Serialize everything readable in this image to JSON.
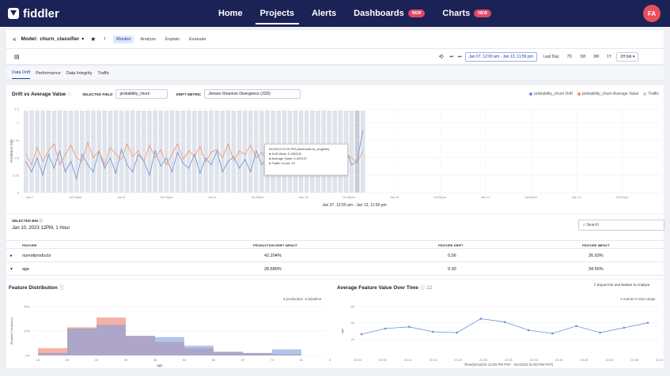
{
  "brand": "fiddler",
  "nav": {
    "home": "Home",
    "projects": "Projects",
    "alerts": "Alerts",
    "dashboards": "Dashboards",
    "charts": "Charts",
    "new_badge": "NEW",
    "avatar": "FA"
  },
  "model_header": {
    "model_label": "Model:",
    "model_name": "churn_classifier",
    "sub_tabs": [
      "Monitor",
      "Analyze",
      "Explain",
      "Evaluate"
    ]
  },
  "toolbar": {
    "date_range": "Jan 07, 12:00 am - Jan 13, 11:59 pm",
    "ranges": [
      "Last Day",
      "7D",
      "1M",
      "3M",
      "1Y"
    ],
    "bin": "1H bin"
  },
  "tabs": [
    "Data Drift",
    "Performance",
    "Data Integrity",
    "Traffic"
  ],
  "drift_panel": {
    "title": "Drift vs Average Value",
    "selected_field_label": "SELECTED FIELD",
    "selected_field": "probability_churn",
    "drift_metric_label": "DRIFT METRIC",
    "drift_metric": "Jensen-Shannon Divergence (JSD)",
    "legend": [
      "probability_churn Drift",
      "probability_churn Average Value",
      "Traffic"
    ],
    "colors": {
      "drift": "#6a8fd8",
      "avg": "#f09070",
      "traffic": "#dfe3ea"
    },
    "x_caption": "Jan 07, 12:00 am - Jan 13, 11:59 pm",
    "y_axis_label": "Prediction Drift",
    "tooltip": {
      "time": "01/10/23 12:00 PM (America/Los_Angeles)",
      "drift": "Drift Value: 0.452326",
      "avg": "Average Value: 0.429137",
      "count": "Traffic Count: 10"
    }
  },
  "chart_data": [
    {
      "type": "line",
      "title": "Drift vs Average Value",
      "ylabel": "Prediction Drift",
      "ylim": [
        0,
        1.2
      ],
      "y_ticks": [
        "1.2",
        "1",
        "0.75",
        "0.5",
        "0.25",
        "0"
      ],
      "x_ticks": [
        "Jan 7",
        "04:00pm",
        "Jan 8",
        "04:00pm",
        "Jan 9",
        "04:00pm",
        "Jan 10",
        "04:00pm",
        "Jan 11",
        "04:00pm",
        "Jan 12",
        "04:00pm",
        "Jan 13",
        "04:00pm"
      ],
      "series": [
        {
          "name": "probability_churn Drift",
          "values": [
            0.45,
            0.3,
            0.5,
            0.25,
            0.55,
            0.35,
            0.6,
            0.3,
            0.45,
            0.2,
            0.55,
            0.4,
            0.3,
            0.6,
            0.35,
            0.5,
            0.28,
            0.62,
            0.4,
            0.3,
            0.55,
            0.45,
            0.25,
            0.6,
            0.38,
            0.5,
            0.3,
            0.58,
            0.42,
            0.35,
            0.55,
            0.28,
            0.5,
            0.4,
            0.6,
            0.3,
            0.45,
            0.52,
            0.35,
            0.48,
            0.3,
            0.6,
            0.4,
            0.5,
            0.32,
            0.55,
            0.45,
            0.38,
            0.52,
            0.42,
            0.3,
            0.58,
            0.4,
            0.48,
            0.35,
            0.5,
            0.45,
            0.62,
            0.4,
            0.45,
            0.9
          ]
        },
        {
          "name": "probability_churn Average Value",
          "values": [
            0.55,
            0.4,
            0.65,
            0.45,
            0.6,
            0.7,
            0.4,
            0.55,
            0.68,
            0.5,
            0.45,
            0.72,
            0.5,
            0.6,
            0.4,
            0.65,
            0.55,
            0.48,
            0.7,
            0.52,
            0.6,
            0.45,
            0.68,
            0.5,
            0.62,
            0.4,
            0.55,
            0.7,
            0.48,
            0.6,
            0.52,
            0.66,
            0.44,
            0.58,
            0.62,
            0.5,
            0.7,
            0.46,
            0.6,
            0.55,
            0.68,
            0.5,
            0.58,
            0.45,
            0.66,
            0.52,
            0.6,
            0.48,
            0.7,
            0.54,
            0.62,
            0.5,
            0.58,
            0.46,
            0.64,
            0.52,
            0.6,
            0.55,
            0.5,
            0.43,
            0.6
          ]
        }
      ]
    },
    {
      "type": "bar",
      "title": "Feature Distribution",
      "xlabel": "age",
      "ylabel": "Relative Frequency",
      "x_ticks": [
        "18",
        "25",
        "32",
        "39",
        "46",
        "53",
        "60",
        "67",
        "74",
        "81",
        "88"
      ],
      "y_ticks": [
        "40%",
        "20%",
        "0%"
      ],
      "ylim": [
        0,
        0.4
      ],
      "series": [
        {
          "name": "production",
          "values": [
            0.02,
            0.22,
            0.25,
            0.16,
            0.15,
            0.08,
            0.03,
            0.02,
            0.05
          ]
        },
        {
          "name": "baseline",
          "values": [
            0.06,
            0.23,
            0.31,
            0.16,
            0.11,
            0.06,
            0.03,
            0.02,
            0.01
          ]
        }
      ]
    },
    {
      "type": "line",
      "title": "Average Feature Value Over Time",
      "ylabel": "age",
      "ylim": [
        0,
        60
      ],
      "y_ticks": [
        "60",
        "40",
        "20"
      ],
      "xlabel": "Time(01/10/23 12:00 PM PST - 01/10/23 01:00 PM PST)",
      "x_ticks": [
        "20:00",
        "20:05",
        "20:10",
        "20:15",
        "20:20",
        "20:25",
        "20:30",
        "20:35",
        "20:40",
        "20:45",
        "20:50",
        "20:55",
        "21:00"
      ],
      "series": [
        {
          "name": "events in time range",
          "values": [
            26,
            33,
            35,
            29,
            28,
            45,
            41,
            31,
            27,
            36,
            28,
            34,
            40
          ]
        }
      ]
    }
  ],
  "selected_bin": {
    "label": "SELECTED BIN",
    "value": "Jan 10, 2023 12PM, 1 Hour",
    "search_placeholder": "Search"
  },
  "impact_table": {
    "headers": [
      "FEATURE",
      "PRODUCTION DRIFT IMPACT",
      "FEATURE DRIFT",
      "FEATURE IMPACT"
    ],
    "rows": [
      {
        "feature": "numofproducts",
        "prod_impact": "42.204%",
        "drift": "0.56",
        "impact": "26.93%"
      },
      {
        "feature": "age",
        "prod_impact": "28.680%",
        "drift": "0.30",
        "impact": "34.55%"
      }
    ]
  },
  "feature_dist": {
    "title": "Feature Distribution",
    "legend": [
      "production",
      "baseline"
    ],
    "colors": {
      "production": "#7d9fe0",
      "baseline": "#ef7f6a"
    },
    "xlabel": "age"
  },
  "avg_over_time": {
    "title": "Average Feature Value Over Time",
    "count": "12",
    "export": "Export bin and feature to Analyze",
    "legend": "events in time range",
    "color": "#6a8fd8"
  }
}
